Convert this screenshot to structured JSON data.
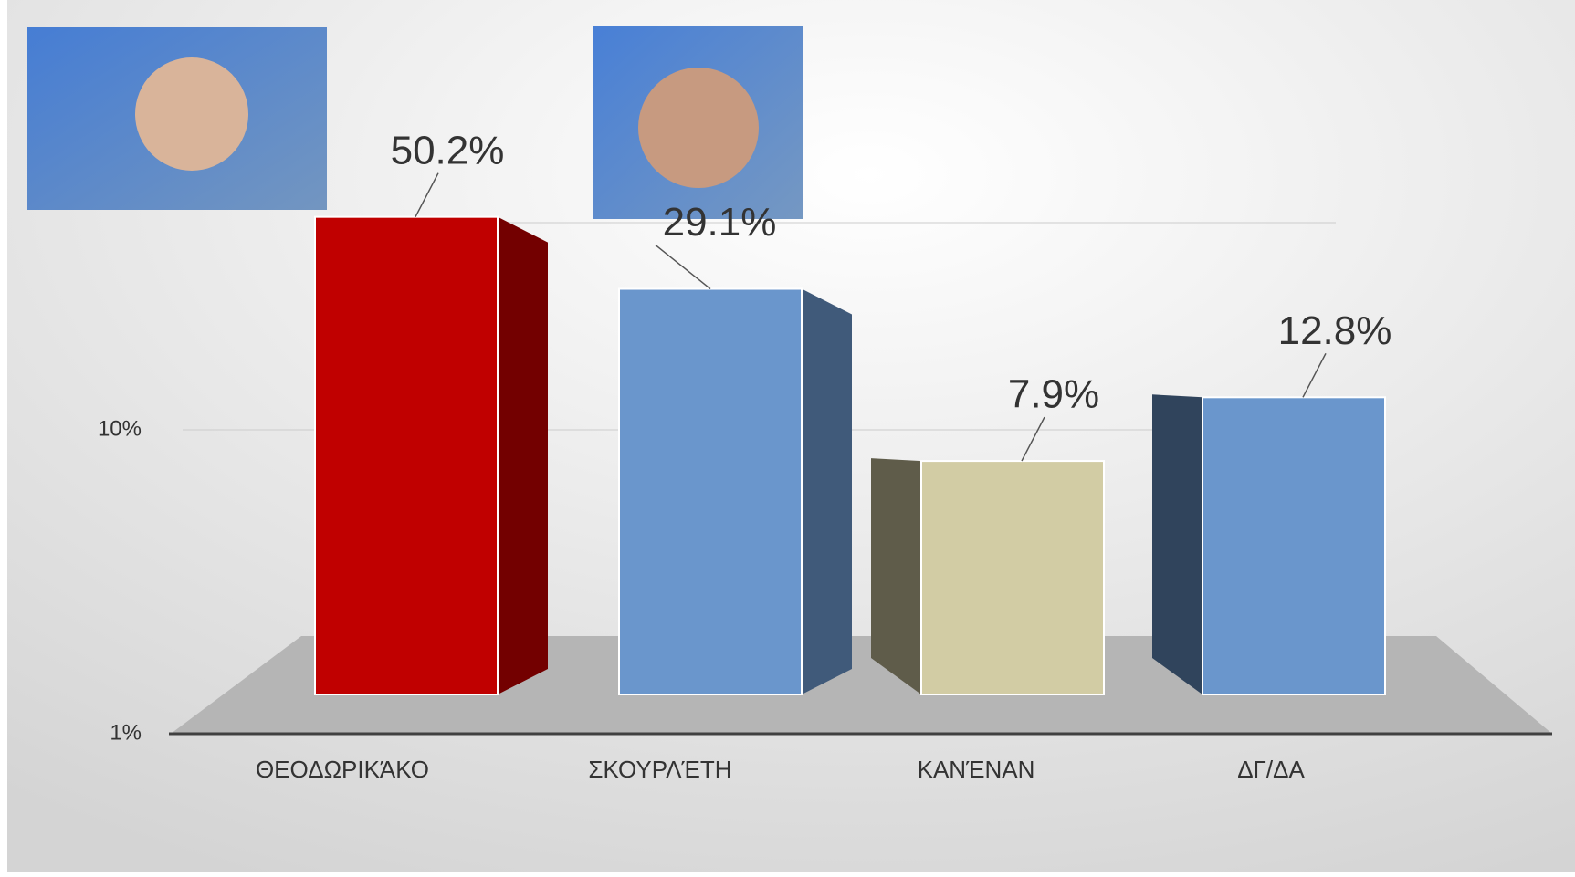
{
  "chart_data": {
    "type": "bar",
    "categories": [
      "ΘΕΟΔΩΡΙΚΆΚΟ",
      "ΣΚΟΥΡΛΈΤΗ",
      "ΚΑΝΈΝΑΝ",
      "ΔΓ/ΔΑ"
    ],
    "values": [
      50.2,
      29.1,
      7.9,
      12.8
    ],
    "value_labels": [
      "50.2%",
      "29.1%",
      "7.9%",
      "12.8%"
    ],
    "colors": [
      "#c00000",
      "#6a96cc",
      "#d2cca4",
      "#6a96cc"
    ],
    "ylim": [
      1,
      100
    ],
    "log_scale": true,
    "yticks": [
      {
        "value": 1,
        "label": "1%"
      },
      {
        "value": 10,
        "label": "10%"
      }
    ],
    "grid": true
  }
}
